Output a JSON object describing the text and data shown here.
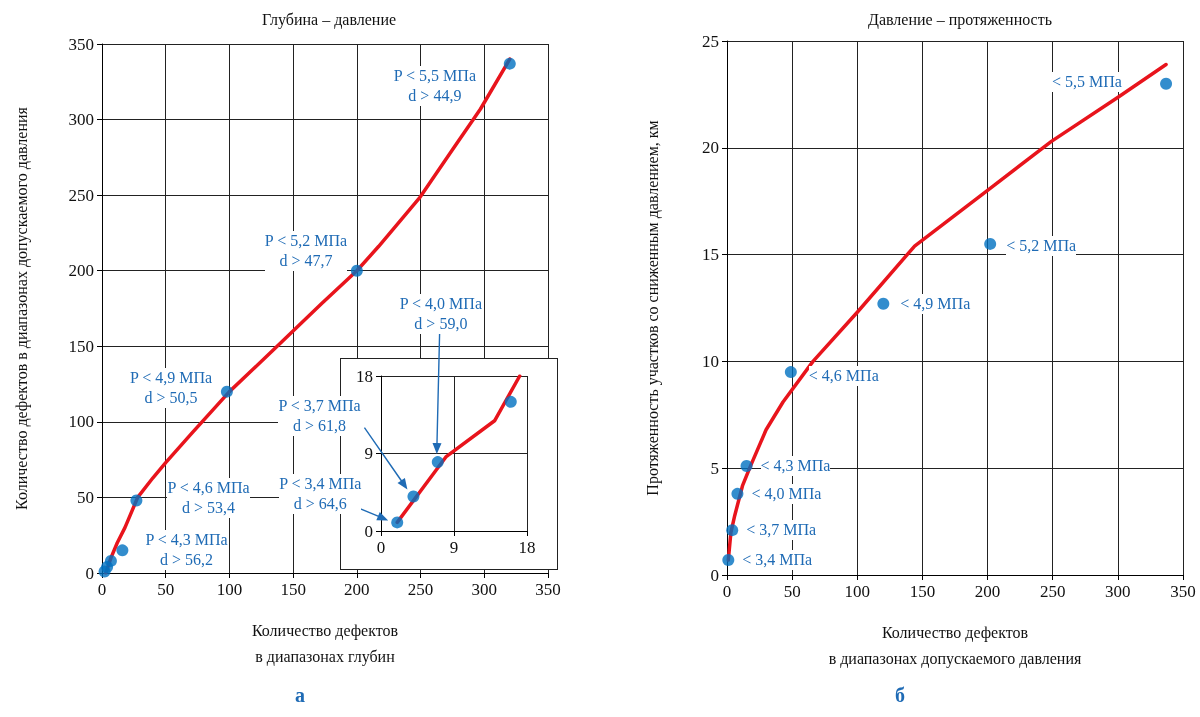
{
  "chart_data": [
    {
      "type": "scatter",
      "title": "Глубина – давление",
      "xlabel": "Количество дефектов\nв диапазонах глубин",
      "ylabel": "Количество дефектов в диапазонах допускаемого давления",
      "xlim": [
        0,
        350
      ],
      "xticks": [
        0,
        50,
        100,
        150,
        200,
        250,
        300,
        350
      ],
      "ylim": [
        0,
        350
      ],
      "yticks": [
        0,
        50,
        100,
        150,
        200,
        250,
        300,
        350
      ],
      "grid": true,
      "series": [
        {
          "type": "scatter",
          "color": "#0070c0",
          "marker": "circle",
          "x": [
            2,
            4,
            7,
            16,
            27,
            98,
            200,
            320
          ],
          "values": [
            1,
            4,
            8,
            15,
            48,
            120,
            200,
            337
          ]
        },
        {
          "type": "line",
          "color": "#e8141c",
          "marker": "none",
          "line_style": "solid",
          "x": [
            3,
            7,
            12,
            18,
            28,
            40,
            50,
            70,
            100,
            135,
            172,
            200,
            217,
            249,
            275,
            297,
            320
          ],
          "values": [
            0,
            10,
            20,
            30,
            50,
            63,
            73,
            92,
            120,
            148,
            178,
            200,
            216,
            248,
            280,
            307,
            340
          ]
        }
      ],
      "annotations": [
        {
          "text": "P < 5,5 МПа\nd > 44,9",
          "x": 320,
          "y": 337
        },
        {
          "text": "P < 5,2 МПа\nd > 47,7",
          "x": 200,
          "y": 200
        },
        {
          "text": "P < 4,9 МПа\nd > 50,5",
          "x": 98,
          "y": 120
        },
        {
          "text": "P < 4,6 МПа\nd > 53,4",
          "x": 27,
          "y": 48
        },
        {
          "text": "P < 4,3 МПа\nd > 56,2",
          "x": 16,
          "y": 15
        },
        "а"
      ]
    },
    {
      "type": "scatter",
      "xlim": [
        0,
        18
      ],
      "xticks": [
        0,
        9,
        18
      ],
      "ylim": [
        0,
        18
      ],
      "yticks": [
        0,
        9,
        18
      ],
      "grid": true,
      "series": [
        {
          "type": "scatter",
          "color": "#0070c0",
          "marker": "circle",
          "x": [
            2,
            4,
            7,
            16
          ],
          "values": [
            1,
            4,
            8,
            15
          ]
        },
        {
          "type": "line",
          "color": "#e8141c",
          "marker": "none",
          "line_style": "solid",
          "x": [
            2,
            8,
            14,
            17.1
          ],
          "values": [
            1,
            8.6,
            12.8,
            18
          ]
        }
      ],
      "annotations": [
        {
          "text": "P < 3,4 МПа\nd > 64,6",
          "x": 2,
          "y": 1
        },
        "P < 3,7 МПа\nd > 61,8",
        "P < 4,0 МПа\nd > 59,0"
      ]
    },
    {
      "type": "scatter",
      "title": "Давление – протяженность",
      "xlabel": "Количество дефектов\nв диапазонах допускаемого давления",
      "ylabel": "Протяженность участков со сниженным давлением, км",
      "xlim": [
        0,
        350
      ],
      "xticks": [
        0,
        50,
        100,
        150,
        200,
        250,
        300,
        350
      ],
      "ylim": [
        0,
        25
      ],
      "yticks": [
        0,
        5,
        10,
        15,
        20,
        25
      ],
      "grid": true,
      "series": [
        {
          "type": "scatter",
          "color": "#0070c0",
          "marker": "circle",
          "x": [
            1,
            4,
            8,
            15,
            49,
            120,
            202,
            337
          ],
          "values": [
            0.7,
            2.1,
            3.8,
            5.1,
            9.5,
            12.7,
            15.5,
            23.0
          ]
        },
        {
          "type": "line",
          "color": "#e8141c",
          "marker": "none",
          "line_style": "solid",
          "x": [
            1,
            3,
            6,
            12,
            18,
            30,
            43,
            66,
            100,
            144,
            202,
            249,
            301,
            337
          ],
          "values": [
            0.7,
            2,
            2.8,
            4.2,
            5.1,
            6.8,
            8.1,
            10,
            12.3,
            15.4,
            18.1,
            20.3,
            22.4,
            23.9
          ]
        }
      ],
      "annotations": [
        {
          "text": "< 3,4 МПа",
          "x": 1,
          "y": 0.7
        },
        {
          "text": "< 3,7 МПа",
          "x": 4,
          "y": 2.1
        },
        {
          "text": "< 4,0 МПа",
          "x": 8,
          "y": 3.8
        },
        {
          "text": "< 4,3 МПа",
          "x": 15,
          "y": 5.1
        },
        {
          "text": "< 4,6 МПа",
          "x": 49,
          "y": 9.5
        },
        {
          "text": "< 4,9 МПа",
          "x": 120,
          "y": 12.7
        },
        {
          "text": "< 5,2 МПа",
          "x": 202,
          "y": 15.5
        },
        {
          "text": "< 5,5 МПа",
          "x": 337,
          "y": 23.0
        },
        "б"
      ]
    }
  ]
}
